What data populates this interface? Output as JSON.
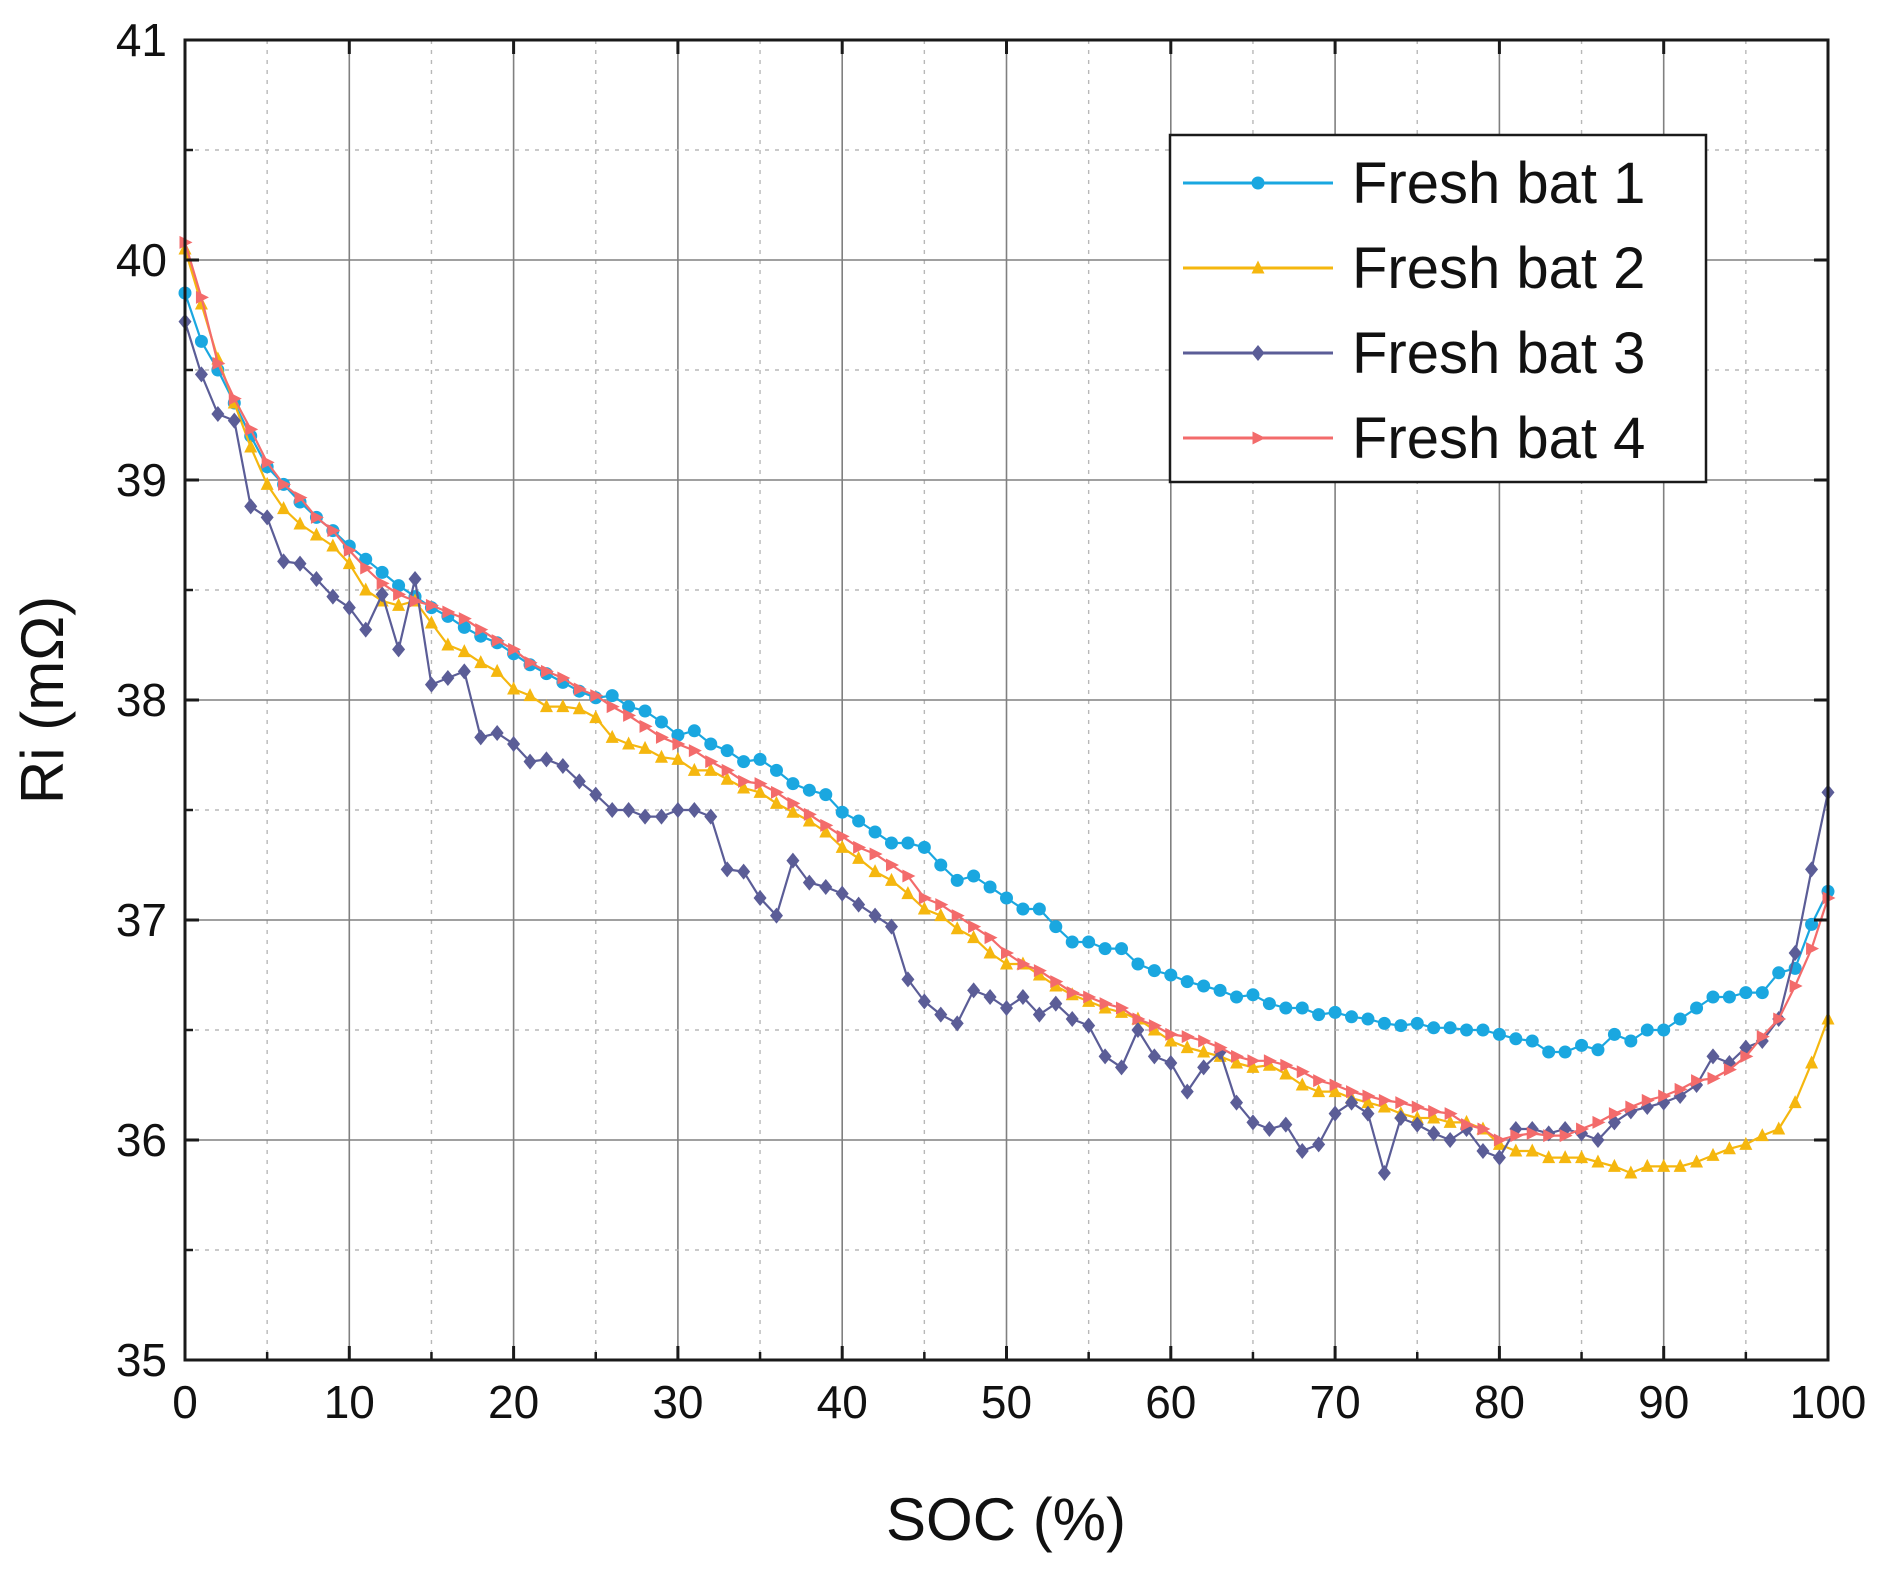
{
  "chart_data": {
    "type": "line",
    "title": "",
    "xlabel": "SOC (%)",
    "ylabel": "Ri (mΩ)",
    "xlim": [
      0,
      100
    ],
    "ylim": [
      35,
      41
    ],
    "x_ticks": [
      0,
      10,
      20,
      30,
      40,
      50,
      60,
      70,
      80,
      90,
      100
    ],
    "y_ticks": [
      35,
      36,
      37,
      38,
      39,
      40,
      41
    ],
    "grid": true,
    "legend_position": "top-right",
    "series": [
      {
        "name": "Fresh bat 1",
        "color": "#1aa7e0",
        "marker": "circle",
        "x": [
          0,
          1,
          2,
          3,
          4,
          5,
          6,
          7,
          8,
          9,
          10,
          11,
          12,
          13,
          14,
          15,
          16,
          17,
          18,
          19,
          20,
          21,
          22,
          23,
          24,
          25,
          26,
          27,
          28,
          29,
          30,
          31,
          32,
          33,
          34,
          35,
          36,
          37,
          38,
          39,
          40,
          41,
          42,
          43,
          44,
          45,
          46,
          47,
          48,
          49,
          50,
          51,
          52,
          53,
          54,
          55,
          56,
          57,
          58,
          59,
          60,
          61,
          62,
          63,
          64,
          65,
          66,
          67,
          68,
          69,
          70,
          71,
          72,
          73,
          74,
          75,
          76,
          77,
          78,
          79,
          80,
          81,
          82,
          83,
          84,
          85,
          86,
          87,
          88,
          89,
          90,
          91,
          92,
          93,
          94,
          95,
          96,
          97,
          98,
          99,
          100
        ],
        "values": [
          39.85,
          39.63,
          39.5,
          39.35,
          39.2,
          39.06,
          38.98,
          38.9,
          38.83,
          38.77,
          38.7,
          38.64,
          38.58,
          38.52,
          38.47,
          38.42,
          38.38,
          38.33,
          38.29,
          38.26,
          38.21,
          38.16,
          38.12,
          38.08,
          38.04,
          38.01,
          38.02,
          37.97,
          37.95,
          37.9,
          37.84,
          37.86,
          37.8,
          37.77,
          37.72,
          37.73,
          37.68,
          37.62,
          37.59,
          37.57,
          37.49,
          37.45,
          37.4,
          37.35,
          37.35,
          37.33,
          37.25,
          37.18,
          37.2,
          37.15,
          37.1,
          37.05,
          37.05,
          36.97,
          36.9,
          36.9,
          36.87,
          36.87,
          36.8,
          36.77,
          36.75,
          36.72,
          36.7,
          36.68,
          36.65,
          36.66,
          36.62,
          36.6,
          36.6,
          36.57,
          36.58,
          36.56,
          36.55,
          36.53,
          36.52,
          36.53,
          36.51,
          36.51,
          36.5,
          36.5,
          36.48,
          36.46,
          36.45,
          36.4,
          36.4,
          36.43,
          36.41,
          36.48,
          36.45,
          36.5,
          36.5,
          36.55,
          36.6,
          36.65,
          36.65,
          36.67,
          36.67,
          36.76,
          36.78,
          36.98,
          37.13
        ]
      },
      {
        "name": "Fresh bat 2",
        "color": "#f5b70f",
        "marker": "triangle-up",
        "x": [
          0,
          1,
          2,
          3,
          4,
          5,
          6,
          7,
          8,
          9,
          10,
          11,
          12,
          13,
          14,
          15,
          16,
          17,
          18,
          19,
          20,
          21,
          22,
          23,
          24,
          25,
          26,
          27,
          28,
          29,
          30,
          31,
          32,
          33,
          34,
          35,
          36,
          37,
          38,
          39,
          40,
          41,
          42,
          43,
          44,
          45,
          46,
          47,
          48,
          49,
          50,
          51,
          52,
          53,
          54,
          55,
          56,
          57,
          58,
          59,
          60,
          61,
          62,
          63,
          64,
          65,
          66,
          67,
          68,
          69,
          70,
          71,
          72,
          73,
          74,
          75,
          76,
          77,
          78,
          79,
          80,
          81,
          82,
          83,
          84,
          85,
          86,
          87,
          88,
          89,
          90,
          91,
          92,
          93,
          94,
          95,
          96,
          97,
          98,
          99,
          100
        ],
        "values": [
          40.05,
          39.8,
          39.55,
          39.35,
          39.15,
          38.98,
          38.87,
          38.8,
          38.75,
          38.7,
          38.62,
          38.5,
          38.45,
          38.43,
          38.45,
          38.35,
          38.25,
          38.22,
          38.17,
          38.13,
          38.05,
          38.02,
          37.97,
          37.97,
          37.96,
          37.92,
          37.83,
          37.8,
          37.78,
          37.74,
          37.73,
          37.68,
          37.68,
          37.64,
          37.6,
          37.58,
          37.53,
          37.49,
          37.45,
          37.4,
          37.33,
          37.28,
          37.22,
          37.18,
          37.12,
          37.05,
          37.02,
          36.96,
          36.92,
          36.85,
          36.8,
          36.8,
          36.75,
          36.7,
          36.66,
          36.63,
          36.6,
          36.58,
          36.55,
          36.5,
          36.45,
          36.42,
          36.4,
          36.38,
          36.35,
          36.33,
          36.34,
          36.3,
          36.25,
          36.22,
          36.22,
          36.19,
          36.17,
          36.15,
          36.12,
          36.1,
          36.1,
          36.08,
          36.08,
          36.05,
          35.98,
          35.95,
          35.95,
          35.92,
          35.92,
          35.92,
          35.9,
          35.88,
          35.85,
          35.88,
          35.88,
          35.88,
          35.9,
          35.93,
          35.96,
          35.98,
          36.02,
          36.05,
          36.17,
          36.35,
          36.55
        ]
      },
      {
        "name": "Fresh bat 3",
        "color": "#5b5d97",
        "marker": "diamond",
        "x": [
          0,
          1,
          2,
          3,
          4,
          5,
          6,
          7,
          8,
          9,
          10,
          11,
          12,
          13,
          14,
          15,
          16,
          17,
          18,
          19,
          20,
          21,
          22,
          23,
          24,
          25,
          26,
          27,
          28,
          29,
          30,
          31,
          32,
          33,
          34,
          35,
          36,
          37,
          38,
          39,
          40,
          41,
          42,
          43,
          44,
          45,
          46,
          47,
          48,
          49,
          50,
          51,
          52,
          53,
          54,
          55,
          56,
          57,
          58,
          59,
          60,
          61,
          62,
          63,
          64,
          65,
          66,
          67,
          68,
          69,
          70,
          71,
          72,
          73,
          74,
          75,
          76,
          77,
          78,
          79,
          80,
          81,
          82,
          83,
          84,
          85,
          86,
          87,
          88,
          89,
          90,
          91,
          92,
          93,
          94,
          95,
          96,
          97,
          98,
          99,
          100
        ],
        "values": [
          39.72,
          39.48,
          39.3,
          39.27,
          38.88,
          38.83,
          38.63,
          38.62,
          38.55,
          38.47,
          38.42,
          38.32,
          38.48,
          38.23,
          38.55,
          38.07,
          38.1,
          38.13,
          37.83,
          37.85,
          37.8,
          37.72,
          37.73,
          37.7,
          37.63,
          37.57,
          37.5,
          37.5,
          37.47,
          37.47,
          37.5,
          37.5,
          37.47,
          37.23,
          37.22,
          37.1,
          37.02,
          37.27,
          37.17,
          37.15,
          37.12,
          37.07,
          37.02,
          36.97,
          36.73,
          36.63,
          36.57,
          36.53,
          36.68,
          36.65,
          36.6,
          36.65,
          36.57,
          36.62,
          36.55,
          36.52,
          36.38,
          36.33,
          36.5,
          36.38,
          36.35,
          36.22,
          36.33,
          36.4,
          36.17,
          36.08,
          36.05,
          36.07,
          35.95,
          35.98,
          36.12,
          36.17,
          36.12,
          35.85,
          36.1,
          36.07,
          36.03,
          36.0,
          36.05,
          35.95,
          35.92,
          36.05,
          36.05,
          36.03,
          36.05,
          36.03,
          36.0,
          36.08,
          36.13,
          36.15,
          36.17,
          36.2,
          36.25,
          36.38,
          36.35,
          36.42,
          36.45,
          36.55,
          36.85,
          37.23,
          37.58
        ]
      },
      {
        "name": "Fresh bat 4",
        "color": "#f36b6b",
        "marker": "triangle-right",
        "x": [
          0,
          1,
          2,
          3,
          4,
          5,
          6,
          7,
          8,
          9,
          10,
          11,
          12,
          13,
          14,
          15,
          16,
          17,
          18,
          19,
          20,
          21,
          22,
          23,
          24,
          25,
          26,
          27,
          28,
          29,
          30,
          31,
          32,
          33,
          34,
          35,
          36,
          37,
          38,
          39,
          40,
          41,
          42,
          43,
          44,
          45,
          46,
          47,
          48,
          49,
          50,
          51,
          52,
          53,
          54,
          55,
          56,
          57,
          58,
          59,
          60,
          61,
          62,
          63,
          64,
          65,
          66,
          67,
          68,
          69,
          70,
          71,
          72,
          73,
          74,
          75,
          76,
          77,
          78,
          79,
          80,
          81,
          82,
          83,
          84,
          85,
          86,
          87,
          88,
          89,
          90,
          91,
          92,
          93,
          94,
          95,
          96,
          97,
          98,
          99,
          100
        ],
        "values": [
          40.08,
          39.83,
          39.53,
          39.37,
          39.23,
          39.08,
          38.98,
          38.92,
          38.83,
          38.77,
          38.68,
          38.6,
          38.53,
          38.48,
          38.45,
          38.43,
          38.4,
          38.37,
          38.32,
          38.27,
          38.23,
          38.17,
          38.13,
          38.1,
          38.05,
          38.02,
          37.97,
          37.93,
          37.88,
          37.83,
          37.8,
          37.77,
          37.72,
          37.68,
          37.63,
          37.62,
          37.58,
          37.53,
          37.48,
          37.43,
          37.38,
          37.33,
          37.3,
          37.25,
          37.2,
          37.1,
          37.07,
          37.02,
          36.97,
          36.92,
          36.85,
          36.8,
          36.77,
          36.72,
          36.67,
          36.65,
          36.62,
          36.6,
          36.55,
          36.52,
          36.48,
          36.47,
          36.45,
          36.42,
          36.38,
          36.36,
          36.36,
          36.34,
          36.31,
          36.27,
          36.25,
          36.22,
          36.2,
          36.18,
          36.17,
          36.15,
          36.13,
          36.12,
          36.07,
          36.05,
          36.0,
          36.02,
          36.03,
          36.02,
          36.02,
          36.05,
          36.08,
          36.12,
          36.15,
          36.18,
          36.2,
          36.23,
          36.27,
          36.28,
          36.32,
          36.38,
          36.47,
          36.55,
          36.7,
          36.87,
          37.1
        ]
      }
    ]
  }
}
